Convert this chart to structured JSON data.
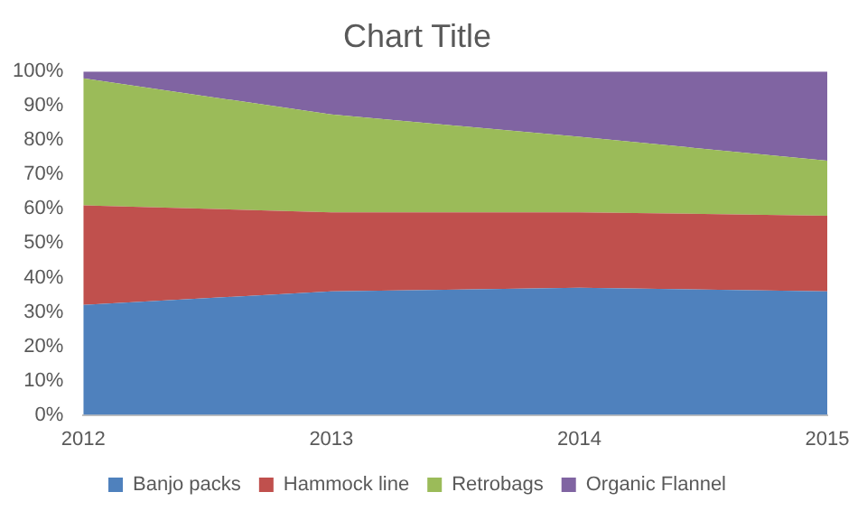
{
  "chart_data": {
    "type": "area",
    "title": "Chart Title",
    "stacked": true,
    "categories": [
      "2012",
      "2013",
      "2014",
      "2015"
    ],
    "series": [
      {
        "name": "Banjo packs",
        "color": "#4f81bd",
        "values": [
          32,
          36,
          37,
          36
        ]
      },
      {
        "name": "Hammock line",
        "color": "#c0504d",
        "values": [
          29,
          23,
          22,
          22
        ]
      },
      {
        "name": "Retrobags",
        "color": "#9bbb59",
        "values": [
          37,
          28.5,
          22,
          16
        ]
      },
      {
        "name": "Organic Flannel",
        "color": "#8064a2",
        "values": [
          2,
          12.5,
          19,
          26
        ]
      }
    ],
    "ylim": [
      0,
      100
    ],
    "yticks": [
      {
        "value": 0,
        "label": "0%"
      },
      {
        "value": 10,
        "label": "10%"
      },
      {
        "value": 20,
        "label": "20%"
      },
      {
        "value": 30,
        "label": "30%"
      },
      {
        "value": 40,
        "label": "40%"
      },
      {
        "value": 50,
        "label": "50%"
      },
      {
        "value": 60,
        "label": "60%"
      },
      {
        "value": 70,
        "label": "70%"
      },
      {
        "value": 80,
        "label": "80%"
      },
      {
        "value": 90,
        "label": "90%"
      },
      {
        "value": 100,
        "label": "100%"
      }
    ],
    "legend": "bottom"
  }
}
